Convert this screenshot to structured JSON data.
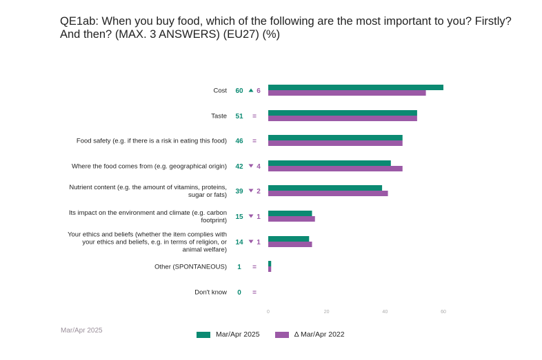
{
  "title": "QE1ab: When you buy food, which of the following are the most important to you? Firstly? And then? (MAX. 3 ANSWERS) (EU27) (%)",
  "footer_note": "Mar/Apr 2025",
  "colors": {
    "current": "#0b8a72",
    "previous": "#9b59a6",
    "up": "#0b8a72",
    "down": "#9b59a6"
  },
  "chart_data": {
    "type": "bar",
    "orientation": "horizontal",
    "categories": [
      "Cost",
      "Taste",
      "Food safety (e.g. if there is a risk in eating this food)",
      "Where the food comes from (e.g. geographical origin)",
      "Nutrient content (e.g. the amount of vitamins, proteins, sugar or fats)",
      "Its impact on the environment and climate (e.g. carbon footprint)",
      "Your ethics and beliefs (whether the item complies with your ethics and beliefs, e.g. in terms of religion, or animal welfare)",
      "Other (SPONTANEOUS)",
      "Don't know"
    ],
    "category_lines": [
      [
        "Cost"
      ],
      [
        "Taste"
      ],
      [
        "Food safety (e.g. if there is a risk in eating this food)"
      ],
      [
        "Where the food comes from (e.g. geographical origin)"
      ],
      [
        "Nutrient content (e.g. the amount of vitamins, proteins,",
        "sugar or fats)"
      ],
      [
        "Its impact on the environment and climate (e.g. carbon",
        "footprint)"
      ],
      [
        "Your ethics and beliefs (whether the item complies with",
        "your ethics and beliefs, e.g. in terms of religion, or",
        "animal welfare)"
      ],
      [
        "Other (SPONTANEOUS)"
      ],
      [
        "Don't know"
      ]
    ],
    "series": [
      {
        "name": "Mar/Apr 2025",
        "values": [
          60,
          51,
          46,
          42,
          39,
          15,
          14,
          1,
          0
        ]
      },
      {
        "name": "Δ Mar/Apr 2022",
        "values": [
          54,
          51,
          46,
          46,
          41,
          16,
          15,
          1,
          0
        ]
      }
    ],
    "value_labels": [
      "60",
      "51",
      "46",
      "42",
      "39",
      "15",
      "14",
      "1",
      "0"
    ],
    "changes": [
      {
        "dir": "up",
        "value": "6"
      },
      {
        "dir": "eq",
        "value": "="
      },
      {
        "dir": "eq",
        "value": "="
      },
      {
        "dir": "down",
        "value": "4"
      },
      {
        "dir": "down",
        "value": "2"
      },
      {
        "dir": "down",
        "value": "1"
      },
      {
        "dir": "down",
        "value": "1"
      },
      {
        "dir": "eq",
        "value": "="
      },
      {
        "dir": "eq",
        "value": "="
      }
    ],
    "xlim": [
      0,
      60
    ],
    "xticks": [
      0,
      20,
      40,
      60
    ],
    "xtick_labels": [
      "0",
      "20",
      "40",
      "60"
    ],
    "grid": false,
    "legend_position": "bottom"
  }
}
